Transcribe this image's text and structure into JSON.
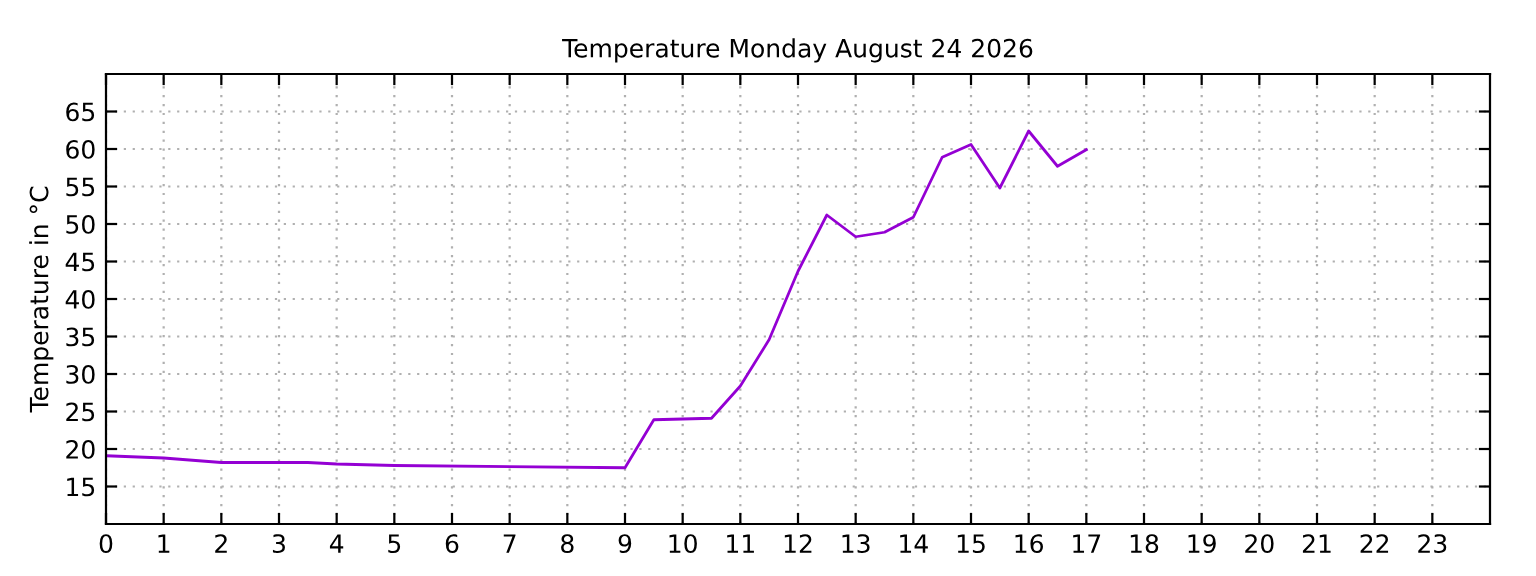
{
  "chart_data": {
    "type": "line",
    "title": "Temperature Monday August 24 2026",
    "ylabel": "Temperature in °C",
    "x": [
      0,
      1,
      2,
      3.5,
      4,
      5,
      9,
      9.5,
      10.5,
      11,
      11.5,
      12,
      12.5,
      13,
      13.5,
      14,
      14.5,
      15,
      15.5,
      16,
      16.5,
      17
    ],
    "series": [
      {
        "color": "#9400d3",
        "values": [
          19.1,
          18.8,
          18.2,
          18.2,
          18.0,
          17.8,
          17.5,
          23.9,
          24.1,
          28.4,
          34.6,
          43.7,
          51.2,
          48.3,
          48.9,
          50.9,
          58.9,
          60.6,
          54.8,
          62.4,
          57.7,
          59.9
        ]
      }
    ],
    "xlim": [
      0,
      24
    ],
    "xticks": [
      0,
      1,
      2,
      3,
      4,
      5,
      6,
      7,
      8,
      9,
      10,
      11,
      12,
      13,
      14,
      15,
      16,
      17,
      18,
      19,
      20,
      21,
      22,
      23
    ],
    "ylim": [
      10,
      70
    ],
    "yticks": [
      15,
      20,
      25,
      30,
      35,
      40,
      45,
      50,
      55,
      60,
      65
    ],
    "grid": true,
    "line_style": "solid",
    "marker": "none",
    "legend": false
  }
}
